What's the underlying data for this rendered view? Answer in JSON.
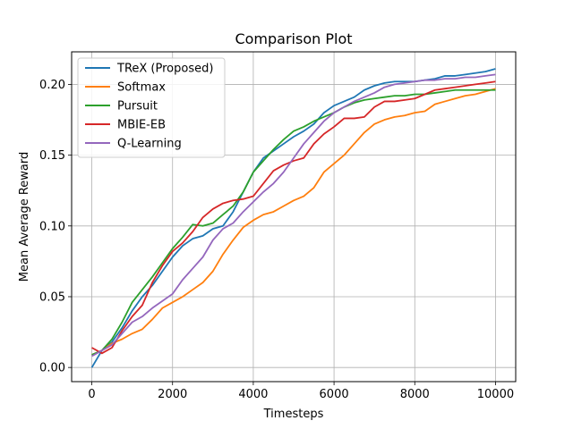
{
  "chart_data": {
    "type": "line",
    "title": "Comparison Plot",
    "xlabel": "Timesteps",
    "ylabel": "Mean Average Reward",
    "xlim": [
      -500,
      10500
    ],
    "ylim": [
      -0.01,
      0.223
    ],
    "xticks": [
      0,
      2000,
      4000,
      6000,
      8000,
      10000
    ],
    "yticks": [
      0.0,
      0.05,
      0.1,
      0.15,
      0.2
    ],
    "xtick_labels": [
      "0",
      "2000",
      "4000",
      "6000",
      "8000",
      "10000"
    ],
    "ytick_labels": [
      "0.00",
      "0.05",
      "0.10",
      "0.15",
      "0.20"
    ],
    "grid": true,
    "legend_position": "top-left",
    "series": [
      {
        "name": "TReX (Proposed)",
        "color": "#1f77b4",
        "x": [
          0,
          250,
          500,
          750,
          1000,
          1250,
          1500,
          1750,
          2000,
          2250,
          2500,
          2750,
          3000,
          3250,
          3500,
          3750,
          4000,
          4250,
          4500,
          4750,
          5000,
          5250,
          5500,
          5750,
          6000,
          6250,
          6500,
          6750,
          7000,
          7250,
          7500,
          7750,
          8000,
          8250,
          8500,
          8750,
          9000,
          9250,
          9500,
          9750,
          10000
        ],
        "y": [
          0.0,
          0.012,
          0.018,
          0.028,
          0.04,
          0.05,
          0.058,
          0.068,
          0.078,
          0.086,
          0.091,
          0.093,
          0.098,
          0.1,
          0.11,
          0.124,
          0.138,
          0.148,
          0.153,
          0.158,
          0.163,
          0.167,
          0.172,
          0.18,
          0.185,
          0.188,
          0.191,
          0.196,
          0.199,
          0.201,
          0.202,
          0.202,
          0.202,
          0.203,
          0.204,
          0.206,
          0.206,
          0.207,
          0.208,
          0.209,
          0.211
        ]
      },
      {
        "name": "Softmax",
        "color": "#ff7f0e",
        "x": [
          0,
          250,
          500,
          750,
          1000,
          1250,
          1500,
          1750,
          2000,
          2250,
          2500,
          2750,
          3000,
          3250,
          3500,
          3750,
          4000,
          4250,
          4500,
          4750,
          5000,
          5250,
          5500,
          5750,
          6000,
          6250,
          6500,
          6750,
          7000,
          7250,
          7500,
          7750,
          8000,
          8250,
          8500,
          8750,
          9000,
          9250,
          9500,
          9750,
          10000
        ],
        "y": [
          0.009,
          0.012,
          0.017,
          0.02,
          0.024,
          0.027,
          0.034,
          0.042,
          0.046,
          0.05,
          0.055,
          0.06,
          0.068,
          0.08,
          0.09,
          0.099,
          0.104,
          0.108,
          0.11,
          0.114,
          0.118,
          0.121,
          0.127,
          0.138,
          0.144,
          0.15,
          0.158,
          0.166,
          0.172,
          0.175,
          0.177,
          0.178,
          0.18,
          0.181,
          0.186,
          0.188,
          0.19,
          0.192,
          0.193,
          0.195,
          0.197
        ]
      },
      {
        "name": "Pursuit",
        "color": "#2ca02c",
        "x": [
          0,
          250,
          500,
          750,
          1000,
          1250,
          1500,
          1750,
          2000,
          2250,
          2500,
          2750,
          3000,
          3250,
          3500,
          3750,
          4000,
          4250,
          4500,
          4750,
          5000,
          5250,
          5500,
          5750,
          6000,
          6250,
          6500,
          6750,
          7000,
          7250,
          7500,
          7750,
          8000,
          8250,
          8500,
          8750,
          9000,
          9250,
          9500,
          9750,
          10000
        ],
        "y": [
          0.009,
          0.012,
          0.02,
          0.032,
          0.046,
          0.055,
          0.064,
          0.074,
          0.084,
          0.092,
          0.101,
          0.1,
          0.102,
          0.108,
          0.114,
          0.124,
          0.138,
          0.146,
          0.154,
          0.161,
          0.167,
          0.17,
          0.174,
          0.177,
          0.18,
          0.184,
          0.187,
          0.189,
          0.19,
          0.191,
          0.192,
          0.192,
          0.193,
          0.193,
          0.194,
          0.195,
          0.196,
          0.196,
          0.196,
          0.196,
          0.196
        ]
      },
      {
        "name": "MBIE-EB",
        "color": "#d62728",
        "x": [
          0,
          250,
          500,
          750,
          1000,
          1250,
          1500,
          1750,
          2000,
          2250,
          2500,
          2750,
          3000,
          3250,
          3500,
          3750,
          4000,
          4250,
          4500,
          4750,
          5000,
          5250,
          5500,
          5750,
          6000,
          6250,
          6500,
          6750,
          7000,
          7250,
          7500,
          7750,
          8000,
          8250,
          8500,
          8750,
          9000,
          9250,
          9500,
          9750,
          10000
        ],
        "y": [
          0.014,
          0.01,
          0.014,
          0.026,
          0.036,
          0.044,
          0.06,
          0.072,
          0.082,
          0.088,
          0.096,
          0.106,
          0.112,
          0.116,
          0.118,
          0.119,
          0.121,
          0.13,
          0.139,
          0.143,
          0.146,
          0.148,
          0.158,
          0.165,
          0.17,
          0.176,
          0.176,
          0.177,
          0.184,
          0.188,
          0.188,
          0.189,
          0.19,
          0.193,
          0.196,
          0.197,
          0.198,
          0.199,
          0.2,
          0.201,
          0.202
        ]
      },
      {
        "name": "Q-Learning",
        "color": "#9467bd",
        "x": [
          0,
          250,
          500,
          750,
          1000,
          1250,
          1500,
          1750,
          2000,
          2250,
          2500,
          2750,
          3000,
          3250,
          3500,
          3750,
          4000,
          4250,
          4500,
          4750,
          5000,
          5250,
          5500,
          5750,
          6000,
          6250,
          6500,
          6750,
          7000,
          7250,
          7500,
          7750,
          8000,
          8250,
          8500,
          8750,
          9000,
          9250,
          9500,
          9750,
          10000
        ],
        "y": [
          0.008,
          0.012,
          0.016,
          0.024,
          0.032,
          0.036,
          0.042,
          0.047,
          0.052,
          0.062,
          0.07,
          0.078,
          0.09,
          0.098,
          0.102,
          0.11,
          0.117,
          0.124,
          0.13,
          0.138,
          0.148,
          0.158,
          0.166,
          0.174,
          0.18,
          0.184,
          0.188,
          0.191,
          0.194,
          0.198,
          0.2,
          0.201,
          0.202,
          0.203,
          0.203,
          0.204,
          0.204,
          0.205,
          0.205,
          0.206,
          0.207
        ]
      }
    ]
  }
}
